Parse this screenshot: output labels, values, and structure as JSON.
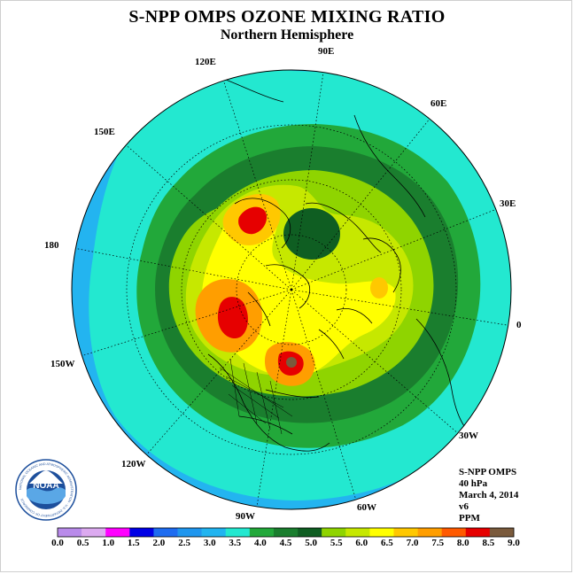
{
  "title": "S-NPP OMPS OZONE MIXING RATIO",
  "subtitle": "Northern Hemisphere",
  "info": {
    "instrument": "S-NPP OMPS",
    "level": "40 hPa",
    "date": "March 4, 2014",
    "version": "v6",
    "units": "PPM"
  },
  "longitude_labels": {
    "e90": "90E",
    "e120": "120E",
    "e60": "60E",
    "e150": "150E",
    "e30": "30E",
    "d180": "180",
    "d0": "0",
    "w150": "150W",
    "w30": "30W",
    "w120": "120W",
    "w60": "60W",
    "w90": "90W"
  },
  "colorbar": {
    "labels": [
      "0.0",
      "0.5",
      "1.0",
      "1.5",
      "2.0",
      "2.5",
      "3.0",
      "3.5",
      "4.0",
      "4.5",
      "5.0",
      "5.5",
      "6.0",
      "6.5",
      "7.0",
      "7.5",
      "8.0",
      "8.5",
      "9.0"
    ],
    "colors": [
      "#b98bea",
      "#dcaaf0",
      "#ff00ff",
      "#0000e6",
      "#1e6cf0",
      "#1f96ee",
      "#21b4f0",
      "#23e8d0",
      "#22a83a",
      "#1a7e2e",
      "#0f5e22",
      "#8fd400",
      "#c6e800",
      "#ffff00",
      "#ffc800",
      "#ff9e00",
      "#ff5a00",
      "#e60000",
      "#7a5a3c"
    ]
  },
  "logo": {
    "text": "NOAA",
    "ring_text": "NATIONAL OCEANIC AND ATMOSPHERIC ADMINISTRATION · U.S. DEPARTMENT OF COMMERCE"
  },
  "colors": {
    "outer": "#23b4f0",
    "ring_cyan": "#23e8d0",
    "green_light": "#22a83a",
    "green_mid": "#1a7e2e",
    "green_dark": "#0f5e22",
    "lime": "#8fd400",
    "yellow_green": "#c6e800",
    "yellow": "#ffff00",
    "orange": "#ff9e00",
    "red": "#e60000",
    "brown": "#7a5a3c"
  }
}
